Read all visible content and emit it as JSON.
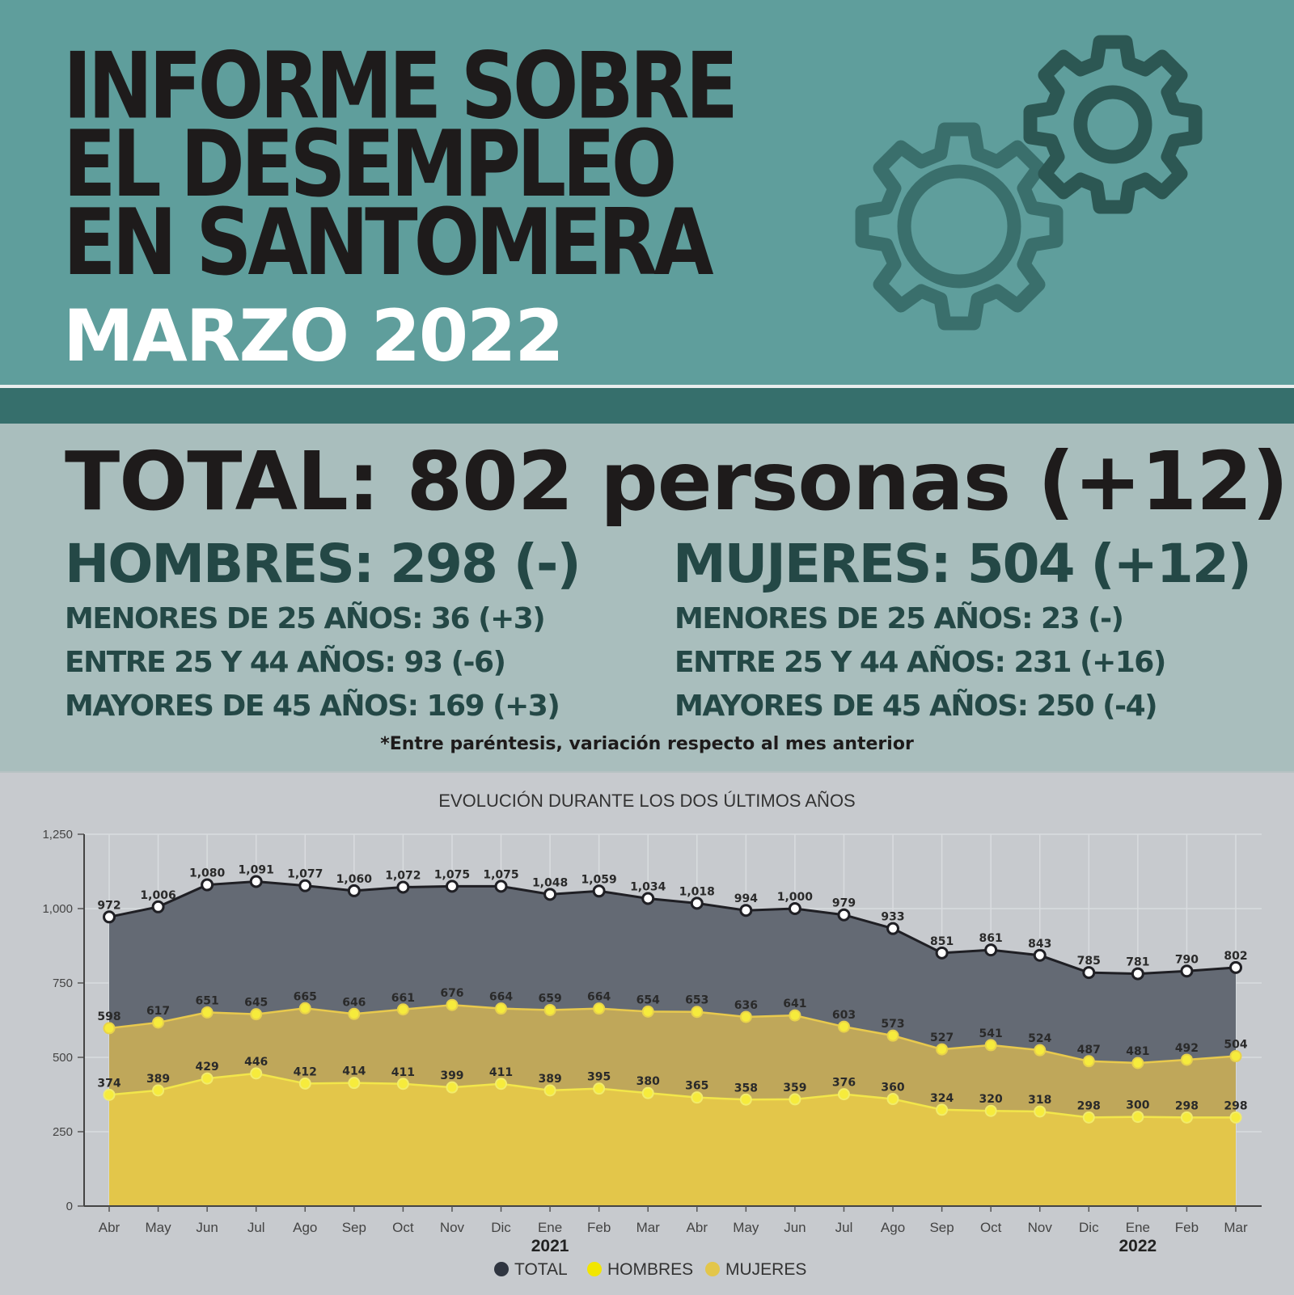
{
  "header": {
    "title_lines": [
      "INFORME SOBRE",
      "EL DESEMPLEO",
      "EN SANTOMERA"
    ],
    "subtitle": "MARZO 2022",
    "icon": "gears-icon"
  },
  "summary": {
    "total": "TOTAL: 802 personas (+12)",
    "hombres": {
      "heading": "HOMBRES: 298 (-)",
      "rows": [
        "MENORES DE 25 AÑOS: 36 (+3)",
        "ENTRE 25 Y 44 AÑOS: 93 (-6)",
        "MAYORES DE 45 AÑOS: 169 (+3)"
      ]
    },
    "mujeres": {
      "heading": "MUJERES: 504 (+12)",
      "rows": [
        "MENORES DE 25 AÑOS: 23 (-)",
        "ENTRE 25 Y 44 AÑOS: 231 (+16)",
        "MAYORES DE 45 AÑOS: 250 (-4)"
      ]
    },
    "note": "*Entre paréntesis, variación respecto al mes anterior"
  },
  "colors": {
    "header_bg": "#5f9e9c",
    "band": "#366f6c",
    "summary_bg": "#a9bebd",
    "total_fill": "#646a74",
    "mujeres_fill": "#bfa75a",
    "hombres_fill": "#e3c64a"
  },
  "chart_data": {
    "type": "area",
    "title": "EVOLUCIÓN DURANTE LOS DOS ÚLTIMOS AÑOS",
    "categories": [
      "Abr",
      "May",
      "Jun",
      "Jul",
      "Ago",
      "Sep",
      "Oct",
      "Nov",
      "Dic",
      "Ene",
      "Feb",
      "Mar",
      "Abr",
      "May",
      "Jun",
      "Jul",
      "Ago",
      "Sep",
      "Oct",
      "Nov",
      "Dic",
      "Ene",
      "Feb",
      "Mar"
    ],
    "year_labels": [
      {
        "index": 9,
        "label": "2021"
      },
      {
        "index": 21,
        "label": "2022"
      }
    ],
    "ylim": [
      0,
      1250
    ],
    "yticks": [
      0,
      250,
      500,
      750,
      1000,
      1250
    ],
    "ytick_labels": [
      "0",
      "250",
      "500",
      "750",
      "1,000",
      "1,250"
    ],
    "series": [
      {
        "name": "TOTAL",
        "color": "#2f3540",
        "values": [
          972,
          1006,
          1080,
          1091,
          1077,
          1060,
          1072,
          1075,
          1075,
          1048,
          1059,
          1034,
          1018,
          994,
          1000,
          979,
          933,
          851,
          861,
          843,
          785,
          781,
          790,
          802
        ],
        "labels": [
          "972",
          "1,006",
          "1,080",
          "1,091",
          "1,077",
          "1,060",
          "1,072",
          "1,075",
          "1,075",
          "1,048",
          "1,059",
          "1,034",
          "1,018",
          "994",
          "1,000",
          "979",
          "933",
          "851",
          "861",
          "843",
          "785",
          "781",
          "790",
          "802"
        ]
      },
      {
        "name": "MUJERES",
        "color": "#e3c64a",
        "values": [
          598,
          617,
          651,
          645,
          665,
          646,
          661,
          676,
          664,
          659,
          664,
          654,
          653,
          636,
          641,
          603,
          573,
          527,
          541,
          524,
          487,
          481,
          492,
          504
        ],
        "labels": [
          "598",
          "617",
          "651",
          "645",
          "665",
          "646",
          "661",
          "676",
          "664",
          "659",
          "664",
          "654",
          "653",
          "636",
          "641",
          "603",
          "573",
          "527",
          "541",
          "524",
          "487",
          "481",
          "492",
          "504"
        ]
      },
      {
        "name": "HOMBRES",
        "color": "#f2e600",
        "values": [
          374,
          389,
          429,
          446,
          412,
          414,
          411,
          399,
          411,
          389,
          395,
          380,
          365,
          358,
          359,
          376,
          360,
          324,
          320,
          318,
          298,
          300,
          298,
          298
        ],
        "labels": [
          "374",
          "389",
          "429",
          "446",
          "412",
          "414",
          "411",
          "399",
          "411",
          "389",
          "395",
          "380",
          "365",
          "358",
          "359",
          "376",
          "360",
          "324",
          "320",
          "318",
          "298",
          "300",
          "298",
          "298"
        ]
      }
    ],
    "legend": [
      {
        "label": "TOTAL",
        "color": "#2f3540"
      },
      {
        "label": "HOMBRES",
        "color": "#f2e600"
      },
      {
        "label": "MUJERES",
        "color": "#e3c64a"
      }
    ],
    "legend_position": "bottom-center"
  }
}
